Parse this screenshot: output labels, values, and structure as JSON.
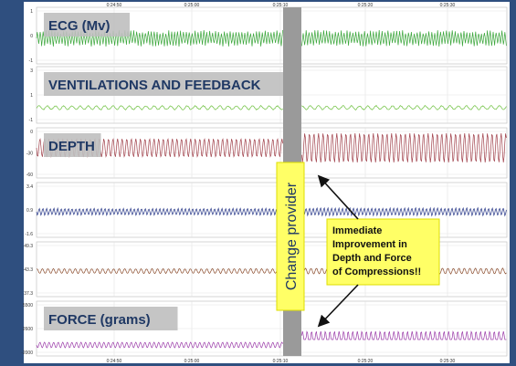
{
  "time_ticks": [
    "0:24:50",
    "0:25:00",
    "0:25:10",
    "0:25:20",
    "0:25:30"
  ],
  "panels": [
    {
      "label": "ECG (Mv)",
      "yticks": [
        "1",
        "0",
        "-1"
      ]
    },
    {
      "label": "VENTILATIONS AND FEEDBACK",
      "yticks": [
        "3",
        "1",
        "-1"
      ]
    },
    {
      "label": "DEPTH",
      "yticks": [
        "0",
        "-30",
        "-60"
      ]
    },
    {
      "yticks": [
        "3.4",
        "0.9",
        "-1.6"
      ]
    },
    {
      "yticks": [
        "49.3",
        "43.3",
        "37.3"
      ]
    },
    {
      "label": "FORCE (grams)",
      "yticks": [
        "5500",
        "2600",
        "-2000"
      ]
    }
  ],
  "change_label": "Change provider",
  "annotation": [
    "Immediate",
    "Improvement  in",
    "Depth and Force",
    "of Compressions!!"
  ]
}
